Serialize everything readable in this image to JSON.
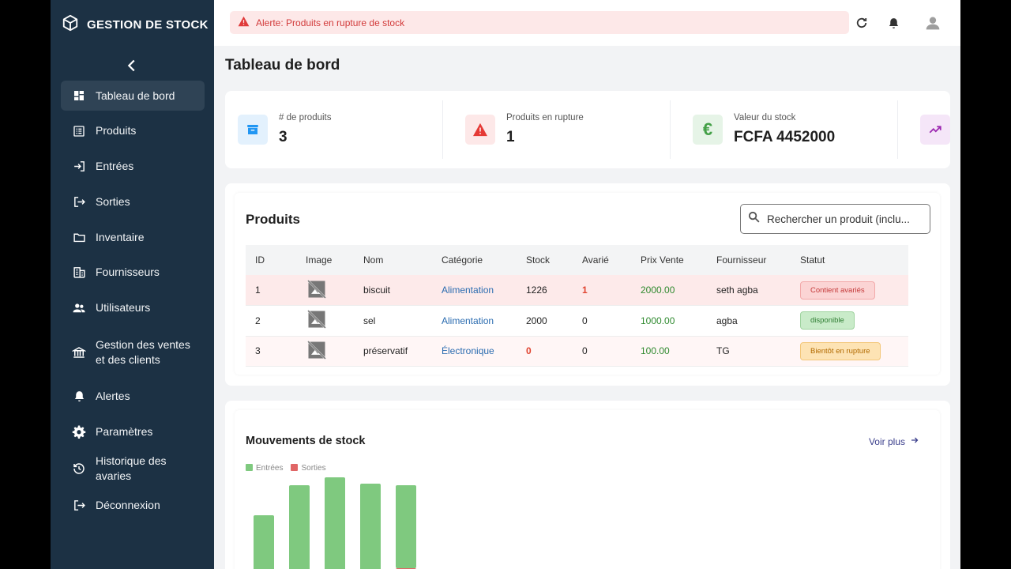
{
  "app": {
    "brand": "GESTION DE STOCK"
  },
  "sidebar": {
    "items": [
      {
        "label": "Tableau de bord",
        "icon": "dashboard-icon"
      },
      {
        "label": "Produits",
        "icon": "list-icon"
      },
      {
        "label": "Entrées",
        "icon": "login-icon"
      },
      {
        "label": "Sorties",
        "icon": "logout-icon"
      },
      {
        "label": "Inventaire",
        "icon": "folder-icon"
      },
      {
        "label": "Fournisseurs",
        "icon": "building-icon"
      },
      {
        "label": "Utilisateurs",
        "icon": "users-icon"
      },
      {
        "label": "Gestion des ventes et des clients",
        "icon": "bank-icon"
      },
      {
        "label": "Alertes",
        "icon": "bell-icon"
      },
      {
        "label": "Paramètres",
        "icon": "gear-icon"
      },
      {
        "label": "Historique des avaries",
        "icon": "history-icon"
      },
      {
        "label": "Déconnexion",
        "icon": "exit-icon"
      }
    ]
  },
  "topbar": {
    "alert": "Alerte: Produits en rupture de stock"
  },
  "main": {
    "title": "Tableau de bord",
    "stats": [
      {
        "label": "# de produits",
        "value": "3",
        "icon": "archive-icon",
        "color": "#2196f3"
      },
      {
        "label": "Produits en rupture",
        "value": "1",
        "icon": "warning-icon",
        "color": "#e53935"
      },
      {
        "label": "Valeur du stock",
        "value": "FCFA 4452000",
        "icon": "euro-icon",
        "color": "#43a047"
      },
      {
        "label": "",
        "value": "",
        "icon": "trending-icon",
        "color": "#9c27b0"
      }
    ],
    "products": {
      "title": "Produits",
      "search_placeholder": "Rechercher un produit (inclu...",
      "columns": [
        "ID",
        "Image",
        "Nom",
        "Catégorie",
        "Stock",
        "Avarié",
        "Prix Vente",
        "Fournisseur",
        "Statut"
      ],
      "rows": [
        {
          "id": "1",
          "nom": "biscuit",
          "categorie": "Alimentation",
          "stock": "1226",
          "avarie": "1",
          "prix": "2000.00",
          "fournisseur": "seth agba",
          "statut": "Contient avariés"
        },
        {
          "id": "2",
          "nom": "sel",
          "categorie": "Alimentation",
          "stock": "2000",
          "avarie": "0",
          "prix": "1000.00",
          "fournisseur": "agba",
          "statut": "disponible"
        },
        {
          "id": "3",
          "nom": "préservatif",
          "categorie": "Électronique",
          "stock": "0",
          "avarie": "0",
          "prix": "100.00",
          "fournisseur": "TG",
          "statut": "Bientôt en rupture"
        }
      ]
    },
    "moves": {
      "title": "Mouvements de stock",
      "voir_plus": "Voir plus",
      "legend": [
        "Entrées",
        "Sorties"
      ]
    }
  },
  "chart_data": {
    "type": "bar",
    "stacked": true,
    "series": [
      {
        "name": "Entrées",
        "color": "#7fc97f",
        "values": [
          75,
          120,
          135,
          115,
          105
        ]
      },
      {
        "name": "Sorties",
        "color": "#e06666",
        "values": [
          12,
          5,
          0,
          12,
          20
        ]
      }
    ]
  }
}
